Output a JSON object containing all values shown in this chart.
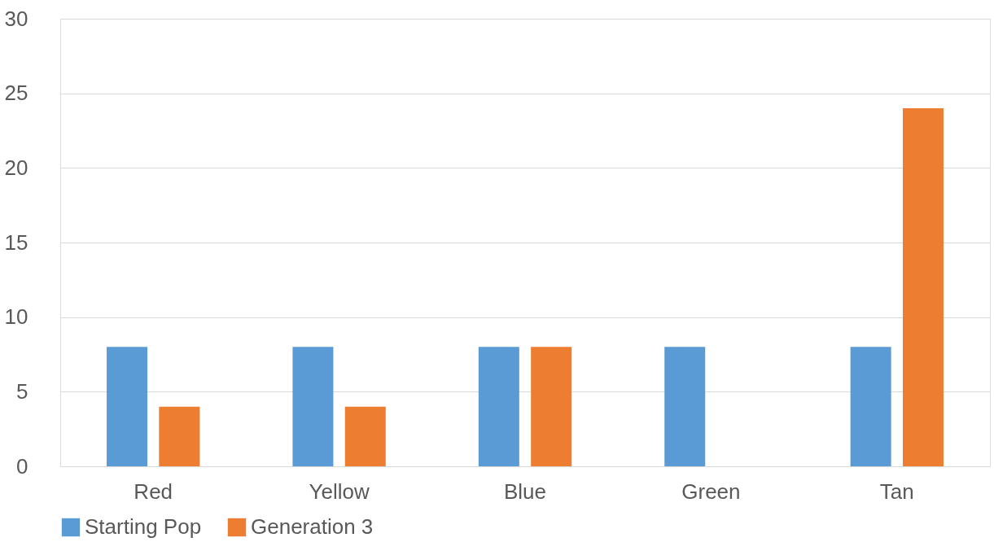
{
  "chart_data": {
    "type": "bar",
    "categories": [
      "Red",
      "Yellow",
      "Blue",
      "Green",
      "Tan"
    ],
    "series": [
      {
        "name": "Starting Pop",
        "color": "#5b9bd5",
        "values": [
          8,
          8,
          8,
          8,
          8
        ]
      },
      {
        "name": "Generation 3",
        "color": "#ed7d31",
        "values": [
          4,
          4,
          8,
          0,
          24
        ]
      }
    ],
    "ylim": [
      0,
      30
    ],
    "yticks": [
      0,
      5,
      10,
      15,
      20,
      25,
      30
    ],
    "grid": "y",
    "legend": "bottom"
  }
}
